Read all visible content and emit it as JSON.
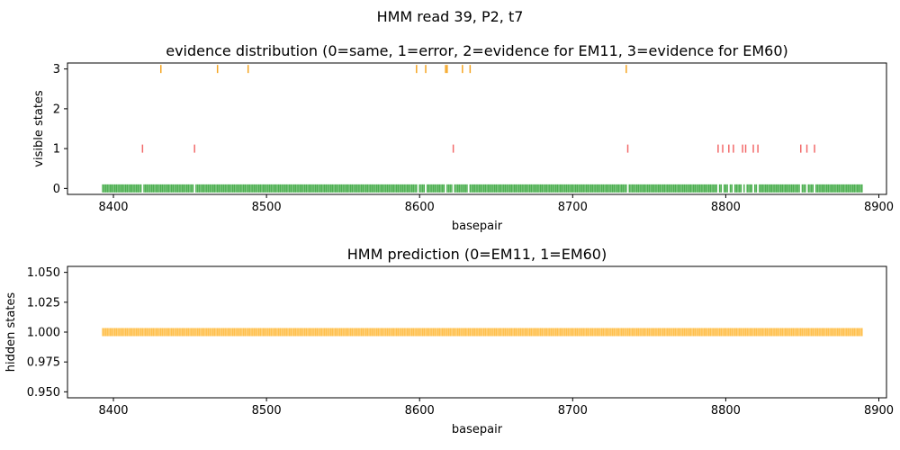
{
  "figure": {
    "suptitle": "HMM read 39, P2, t7"
  },
  "colors": {
    "same": "#4caf50",
    "error": "#f26b6b",
    "evidence": "#f5a623",
    "hidden": "#ffc04d"
  },
  "chart_data": [
    {
      "type": "scatter",
      "title": "evidence distribution (0=same, 1=error, 2=evidence for EM11, 3=evidence for EM60)",
      "xlabel": "basepair",
      "ylabel": "visible states",
      "xlim": [
        8370,
        8905
      ],
      "ylim": [
        -0.15,
        3.15
      ],
      "xticks": [
        8400,
        8500,
        8600,
        8700,
        8800,
        8900
      ],
      "yticks": [
        0,
        1,
        2,
        3
      ],
      "grid": false,
      "marker": "|",
      "series": [
        {
          "state": 0,
          "color_key": "same",
          "x_range": [
            8393,
            8889
          ],
          "x_gaps": [
            8419,
            8453,
            8599,
            8604,
            8617,
            8622,
            8632,
            8736,
            8795,
            8798,
            8802,
            8805,
            8811,
            8813,
            8818,
            8821,
            8849,
            8853,
            8858
          ]
        },
        {
          "state": 1,
          "color_key": "error",
          "x": [
            8419,
            8453,
            8622,
            8736,
            8795,
            8798,
            8802,
            8805,
            8811,
            8813,
            8818,
            8821,
            8849,
            8853,
            8858
          ]
        },
        {
          "state": 3,
          "color_key": "evidence",
          "x": [
            8431,
            8468,
            8488,
            8598,
            8604,
            8617,
            8618,
            8628,
            8633,
            8735
          ]
        }
      ]
    },
    {
      "type": "scatter",
      "title": "HMM prediction (0=EM11, 1=EM60)",
      "xlabel": "basepair",
      "ylabel": "hidden states",
      "xlim": [
        8370,
        8905
      ],
      "ylim": [
        0.945,
        1.055
      ],
      "xticks": [
        8400,
        8500,
        8600,
        8700,
        8800,
        8900
      ],
      "yticks": [
        "0.950",
        "0.975",
        "1.000",
        "1.025",
        "1.050"
      ],
      "grid": false,
      "marker": "|",
      "series": [
        {
          "state": 1,
          "color_key": "hidden",
          "x_range": [
            8393,
            8889
          ],
          "x_gaps": []
        }
      ]
    }
  ]
}
